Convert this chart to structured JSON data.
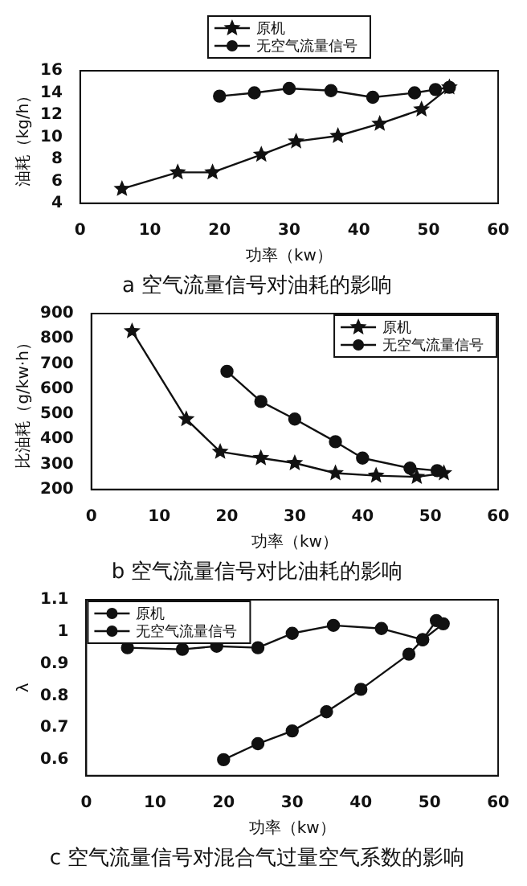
{
  "chart_data": [
    {
      "type": "line",
      "title": "a 空气流量信号对油耗的影响",
      "xlabel": "功率（kw）",
      "ylabel": "油耗（kg/h）",
      "xlim": [
        0,
        60
      ],
      "xticks": [
        0,
        10,
        20,
        30,
        40,
        50,
        60
      ],
      "ylim": [
        4,
        16
      ],
      "yticks": [
        4,
        6,
        8,
        10,
        12,
        14,
        16
      ],
      "legend": "top",
      "grid": false,
      "series": [
        {
          "name": "原机",
          "color": "#111111",
          "marker": "star",
          "x": [
            6,
            14,
            19,
            26,
            31,
            37,
            43,
            49,
            53
          ],
          "values": [
            5.3,
            6.8,
            6.8,
            8.4,
            9.6,
            10.1,
            11.2,
            12.5,
            14.5
          ]
        },
        {
          "name": "无空气流量信号",
          "color": "#111111",
          "marker": "circle",
          "x": [
            20,
            25,
            30,
            36,
            42,
            48,
            51,
            53
          ],
          "values": [
            13.7,
            14.0,
            14.4,
            14.2,
            13.6,
            14.0,
            14.3,
            14.5
          ]
        }
      ]
    },
    {
      "type": "line",
      "title": "b 空气流量信号对比油耗的影响",
      "xlabel": "功率（kw）",
      "ylabel": "比油耗（g/kw·h）",
      "xlim": [
        0,
        60
      ],
      "xticks": [
        0,
        10,
        20,
        30,
        40,
        50,
        60
      ],
      "ylim": [
        200,
        900
      ],
      "yticks": [
        200,
        300,
        400,
        500,
        600,
        700,
        800,
        900
      ],
      "legend": "top right",
      "grid": false,
      "series": [
        {
          "name": "原机",
          "color": "#111111",
          "marker": "star",
          "x": [
            6,
            14,
            19,
            25,
            30,
            36,
            42,
            48,
            52
          ],
          "values": [
            830,
            480,
            350,
            325,
            305,
            265,
            255,
            250,
            265
          ]
        },
        {
          "name": "无空气流量信号",
          "color": "#111111",
          "marker": "circle",
          "x": [
            20,
            25,
            30,
            36,
            40,
            47,
            51
          ],
          "values": [
            670,
            550,
            480,
            390,
            325,
            285,
            275
          ]
        }
      ]
    },
    {
      "type": "line",
      "title": "c 空气流量信号对混合气过量空气系数的影响",
      "xlabel": "功率（kw）",
      "ylabel": "λ",
      "xlim": [
        0,
        60
      ],
      "xticks": [
        0,
        10,
        20,
        30,
        40,
        50,
        60
      ],
      "ylim": [
        0.55,
        1.1
      ],
      "yticks": [
        0.6,
        0.7,
        0.8,
        0.9,
        1.0,
        1.1
      ],
      "legend": "top left",
      "grid": false,
      "series": [
        {
          "name": "原机",
          "color": "#111111",
          "marker": "circle",
          "x": [
            6,
            14,
            19,
            25,
            30,
            36,
            43,
            49,
            52
          ],
          "values": [
            0.95,
            0.945,
            0.955,
            0.95,
            0.995,
            1.02,
            1.01,
            0.975,
            1.025
          ]
        },
        {
          "name": "无空气流量信号",
          "color": "#111111",
          "marker": "circle",
          "x": [
            20,
            25,
            30,
            35,
            40,
            47,
            49,
            51
          ],
          "values": [
            0.6,
            0.65,
            0.69,
            0.75,
            0.82,
            0.93,
            0.975,
            1.035
          ]
        }
      ]
    }
  ]
}
